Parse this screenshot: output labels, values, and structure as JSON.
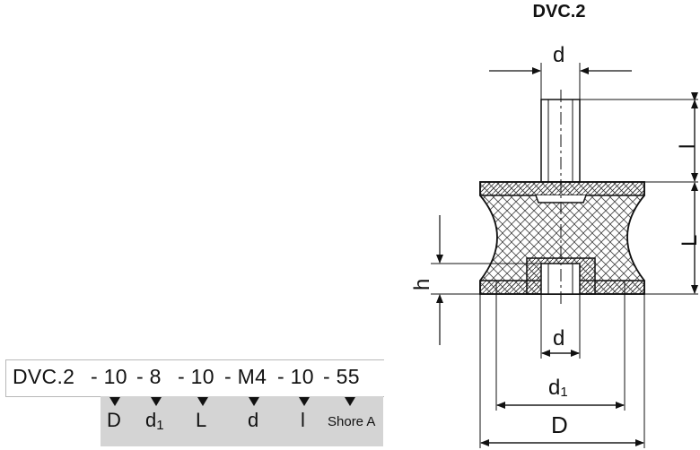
{
  "title": "DVC.2",
  "order_code": {
    "prefix": "DVC.2",
    "parts": [
      "- 10",
      "- 8",
      "- 10",
      "- M4",
      "- 10",
      "- 55"
    ]
  },
  "legend": [
    "D",
    "d1",
    "L",
    "d",
    "l",
    "Shore A"
  ],
  "dimension_labels": {
    "d_top": "d",
    "l": "l",
    "L": "L",
    "h": "h",
    "d_bottom": "d",
    "d1": "d1",
    "D": "D"
  },
  "colors": {
    "line": "#111111",
    "legend_bg": "#d4d4d4",
    "hatch": "#555555"
  }
}
